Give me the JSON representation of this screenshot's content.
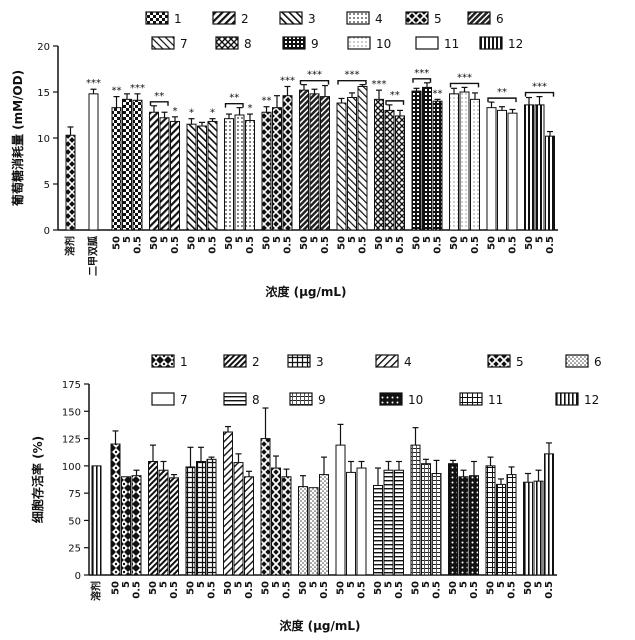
{
  "chart_data": [
    {
      "type": "bar",
      "ylabel": "葡萄糖消耗量 (mM/OD)",
      "xlabel": "浓度 (μg/mL)",
      "ylim": [
        0,
        20
      ],
      "yticks": [
        0,
        5,
        10,
        15,
        20
      ],
      "legend": [
        "1",
        "2",
        "3",
        "4",
        "5",
        "6",
        "7",
        "8",
        "9",
        "10",
        "11",
        "12"
      ],
      "controls": [
        {
          "label": "溶剂",
          "value": 10.3,
          "err": 0.9,
          "sig": ""
        },
        {
          "label": "二甲双胍",
          "value": 14.8,
          "err": 0.5,
          "sig": "***"
        }
      ],
      "concentrations": [
        "50",
        "5",
        "0.5"
      ],
      "groups": [
        {
          "name": "1",
          "values": [
            13.3,
            14.2,
            14.1
          ],
          "errs": [
            1.2,
            0.6,
            0.7
          ],
          "sigs": [
            "**",
            "",
            "***"
          ],
          "brackets": []
        },
        {
          "name": "2",
          "values": [
            12.8,
            12.2,
            11.8
          ],
          "errs": [
            0.7,
            0.6,
            0.5
          ],
          "sigs": [
            "",
            "",
            "*"
          ],
          "brackets": [
            {
              "text": "**",
              "from": 0,
              "to": 1
            }
          ]
        },
        {
          "name": "3",
          "values": [
            11.5,
            11.3,
            11.8
          ],
          "errs": [
            0.6,
            0.4,
            0.3
          ],
          "sigs": [
            "*",
            "",
            "*"
          ],
          "brackets": []
        },
        {
          "name": "4",
          "values": [
            12.1,
            12.5,
            11.9
          ],
          "errs": [
            0.5,
            0.8,
            0.7
          ],
          "sigs": [
            "",
            "",
            "*"
          ],
          "brackets": [
            {
              "text": "**",
              "from": 0,
              "to": 1
            }
          ]
        },
        {
          "name": "5",
          "values": [
            12.8,
            13.3,
            14.6
          ],
          "errs": [
            0.6,
            1.3,
            1.0
          ],
          "sigs": [
            "**",
            "",
            "***"
          ],
          "brackets": []
        },
        {
          "name": "6",
          "values": [
            15.2,
            14.8,
            14.5
          ],
          "errs": [
            0.6,
            0.5,
            1.2
          ],
          "sigs": [
            "",
            "",
            ""
          ],
          "brackets": [
            {
              "text": "***",
              "from": 0,
              "to": 2
            }
          ]
        },
        {
          "name": "7",
          "values": [
            13.8,
            14.4,
            15.6
          ],
          "errs": [
            0.5,
            0.5,
            0.2
          ],
          "sigs": [
            "",
            "",
            ""
          ],
          "brackets": [
            {
              "text": "***",
              "from": 0,
              "to": 2
            }
          ]
        },
        {
          "name": "8",
          "values": [
            14.2,
            13.0,
            12.4
          ],
          "errs": [
            1.0,
            0.6,
            0.6
          ],
          "sigs": [
            "***",
            "",
            ""
          ],
          "brackets": [
            {
              "text": "**",
              "from": 1,
              "to": 2
            }
          ]
        },
        {
          "name": "9",
          "values": [
            15.1,
            15.5,
            14.0
          ],
          "errs": [
            0.3,
            0.5,
            0.2
          ],
          "sigs": [
            "",
            "",
            "**"
          ],
          "brackets": [
            {
              "text": "***",
              "from": 0,
              "to": 1
            }
          ]
        },
        {
          "name": "10",
          "values": [
            14.8,
            15.0,
            14.2
          ],
          "errs": [
            0.6,
            0.5,
            0.7
          ],
          "sigs": [
            "",
            "",
            ""
          ],
          "brackets": [
            {
              "text": "***",
              "from": 0,
              "to": 2
            }
          ]
        },
        {
          "name": "11",
          "values": [
            13.3,
            13.0,
            12.7
          ],
          "errs": [
            0.6,
            0.4,
            0.4
          ],
          "sigs": [
            "",
            "",
            ""
          ],
          "brackets": [
            {
              "text": "**",
              "from": 0,
              "to": 2
            }
          ]
        },
        {
          "name": "12",
          "values": [
            13.6,
            13.6,
            10.2
          ],
          "errs": [
            0.8,
            0.9,
            0.5
          ],
          "sigs": [
            "",
            "",
            ""
          ],
          "brackets": [
            {
              "text": "***",
              "from": 0,
              "to": 2
            }
          ]
        }
      ]
    },
    {
      "type": "bar",
      "ylabel": "细胞存活率 (%)",
      "xlabel": "浓度 (μg/mL)",
      "ylim": [
        0,
        175
      ],
      "yticks": [
        0,
        25,
        50,
        75,
        100,
        125,
        150,
        175
      ],
      "legend": [
        "1",
        "2",
        "3",
        "4",
        "5",
        "6",
        "7",
        "8",
        "9",
        "10",
        "11",
        "12"
      ],
      "controls": [
        {
          "label": "溶剂",
          "value": 100,
          "err": 0,
          "sig": ""
        }
      ],
      "concentrations": [
        "50",
        "5",
        "0.5"
      ],
      "groups": [
        {
          "name": "1",
          "values": [
            120,
            90,
            91
          ],
          "errs": [
            12,
            0,
            5
          ],
          "sigs": [
            "",
            "",
            ""
          ],
          "brackets": []
        },
        {
          "name": "2",
          "values": [
            104,
            96,
            89
          ],
          "errs": [
            15,
            8,
            3
          ],
          "sigs": [
            "",
            "",
            ""
          ],
          "brackets": []
        },
        {
          "name": "3",
          "values": [
            99,
            104,
            106
          ],
          "errs": [
            18,
            13,
            2
          ],
          "sigs": [
            "",
            "",
            ""
          ],
          "brackets": []
        },
        {
          "name": "4",
          "values": [
            131,
            103,
            90
          ],
          "errs": [
            5,
            8,
            5
          ],
          "sigs": [
            "",
            "",
            ""
          ],
          "brackets": []
        },
        {
          "name": "5",
          "values": [
            125,
            98,
            90
          ],
          "errs": [
            28,
            11,
            7
          ],
          "sigs": [
            "",
            "",
            ""
          ],
          "brackets": []
        },
        {
          "name": "6",
          "values": [
            81,
            80,
            92
          ],
          "errs": [
            10,
            0,
            16
          ],
          "sigs": [
            "",
            "",
            ""
          ],
          "brackets": []
        },
        {
          "name": "7",
          "values": [
            119,
            94,
            98
          ],
          "errs": [
            19,
            10,
            6
          ],
          "sigs": [
            "",
            "",
            ""
          ],
          "brackets": []
        },
        {
          "name": "8",
          "values": [
            82,
            96,
            96
          ],
          "errs": [
            16,
            8,
            8
          ],
          "sigs": [
            "",
            "",
            ""
          ],
          "brackets": []
        },
        {
          "name": "9",
          "values": [
            119,
            102,
            93
          ],
          "errs": [
            16,
            4,
            12
          ],
          "sigs": [
            "",
            "",
            ""
          ],
          "brackets": []
        },
        {
          "name": "10",
          "values": [
            102,
            90,
            91
          ],
          "errs": [
            3,
            6,
            13
          ],
          "sigs": [
            "",
            "",
            ""
          ],
          "brackets": []
        },
        {
          "name": "11",
          "values": [
            100,
            83,
            92
          ],
          "errs": [
            8,
            5,
            7
          ],
          "sigs": [
            "",
            "",
            ""
          ],
          "brackets": []
        },
        {
          "name": "12",
          "values": [
            85,
            86,
            111
          ],
          "errs": [
            8,
            10,
            10
          ],
          "sigs": [
            "",
            "",
            ""
          ],
          "brackets": []
        }
      ]
    }
  ]
}
